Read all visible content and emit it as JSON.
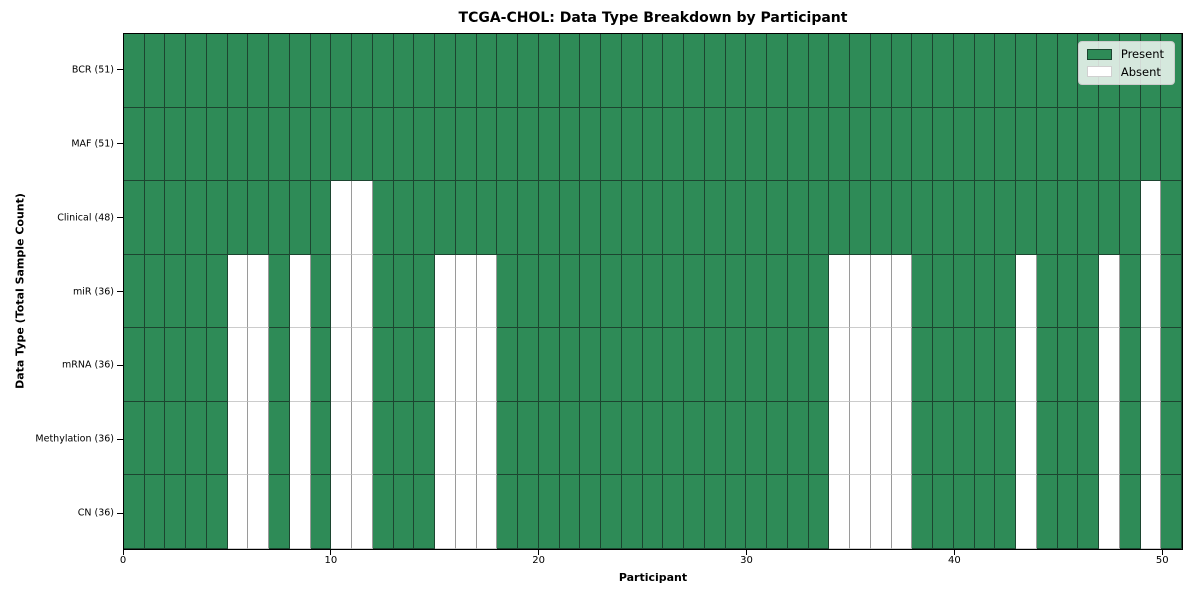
{
  "figure": {
    "title": "TCGA-CHOL: Data Type Breakdown by Participant",
    "xlabel": "Participant",
    "ylabel": "Data Type (Total Sample Count)"
  },
  "chart_data": {
    "type": "heatmap",
    "title": "TCGA-CHOL: Data Type Breakdown by Participant",
    "xlabel": "Participant",
    "ylabel": "Data Type (Total Sample Count)",
    "n_participants": 51,
    "x_range": [
      0,
      51
    ],
    "x_ticks": [
      0,
      10,
      20,
      30,
      40,
      50
    ],
    "grid": true,
    "legend_position": "upper right",
    "rows": [
      {
        "label": "BCR (51)",
        "total_present": 51,
        "absent_participants": []
      },
      {
        "label": "MAF (51)",
        "total_present": 51,
        "absent_participants": []
      },
      {
        "label": "Clinical (48)",
        "total_present": 48,
        "absent_participants": [
          10,
          11,
          49
        ]
      },
      {
        "label": "miR (36)",
        "total_present": 36,
        "absent_participants": [
          5,
          6,
          8,
          10,
          11,
          15,
          16,
          17,
          34,
          35,
          36,
          37,
          43,
          47,
          49
        ]
      },
      {
        "label": "mRNA (36)",
        "total_present": 36,
        "absent_participants": [
          5,
          6,
          8,
          10,
          11,
          15,
          16,
          17,
          34,
          35,
          36,
          37,
          43,
          47,
          49
        ]
      },
      {
        "label": "Methylation (36)",
        "total_present": 36,
        "absent_participants": [
          5,
          6,
          8,
          10,
          11,
          15,
          16,
          17,
          34,
          35,
          36,
          37,
          43,
          47,
          49
        ]
      },
      {
        "label": "CN (36)",
        "total_present": 36,
        "absent_participants": [
          5,
          6,
          8,
          10,
          11,
          15,
          16,
          17,
          34,
          35,
          36,
          37,
          43,
          47,
          49
        ]
      }
    ],
    "legend": [
      {
        "label": "Present",
        "color": "#2e8b57"
      },
      {
        "label": "Absent",
        "color": "#ffffff"
      }
    ],
    "colors": {
      "present": "#2e8b57",
      "absent": "#ffffff",
      "present_edge": "#1c4530",
      "absent_edge": "#9a9a9a",
      "spine": "#000000"
    }
  }
}
